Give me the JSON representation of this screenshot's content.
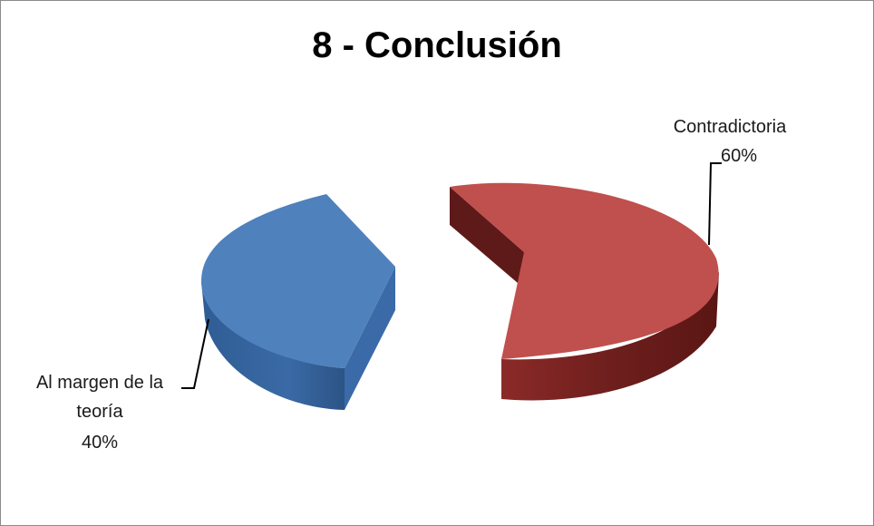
{
  "chart_data": {
    "type": "pie",
    "title": "8 - Conclusión",
    "slices": [
      {
        "name": "Contradictoria",
        "value": 60,
        "label_text": "60%",
        "color": "#c0504d"
      },
      {
        "name": "Al margen de la teoría",
        "name_lines": [
          "Al margen de la",
          "teoría"
        ],
        "value": 40,
        "label_text": "40%",
        "color": "#4f81bd"
      }
    ],
    "style": "3d-exploded"
  }
}
